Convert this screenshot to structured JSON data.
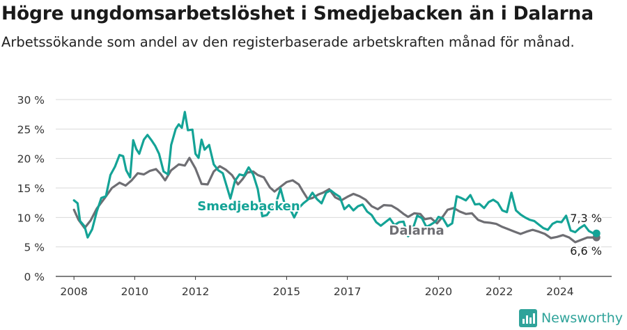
{
  "title": "Högre ungdomsarbetslöshet i Smedjebacken än i Dalarna",
  "subtitle": "Arbetssökande som andel av den registerbaserade arbetskraften månad för månad.",
  "brand": {
    "name": "Newsworthy",
    "icon": "bar-chart-icon",
    "color": "#2fa39a"
  },
  "chart_data": {
    "type": "line",
    "ylim": [
      0,
      30
    ],
    "xlim": [
      2007.4,
      2025.7
    ],
    "yticks": [
      "0 %",
      "5 %",
      "10 %",
      "15 %",
      "20 %",
      "25 %",
      "30 %"
    ],
    "yticks_values": [
      0,
      5,
      10,
      15,
      20,
      25,
      30
    ],
    "xticks": [
      "2008",
      "2010",
      "2012",
      "2015",
      "2017",
      "2020",
      "2022",
      "2024"
    ],
    "xticks_values": [
      2008,
      2010,
      2012,
      2015,
      2017,
      2020,
      2022,
      2024
    ],
    "grid": true,
    "series": [
      {
        "name": "Dalarna",
        "label": "Dalarna",
        "color": "#6e6e73",
        "end_label": "6,6 %",
        "points": [
          [
            2008.0,
            11.3
          ],
          [
            2008.15,
            9.6
          ],
          [
            2008.35,
            8.2
          ],
          [
            2008.55,
            9.5
          ],
          [
            2008.75,
            11.5
          ],
          [
            2009.0,
            13.2
          ],
          [
            2009.25,
            15.0
          ],
          [
            2009.5,
            15.9
          ],
          [
            2009.7,
            15.4
          ],
          [
            2009.9,
            16.3
          ],
          [
            2010.1,
            17.5
          ],
          [
            2010.3,
            17.3
          ],
          [
            2010.5,
            17.9
          ],
          [
            2010.7,
            18.2
          ],
          [
            2010.85,
            17.4
          ],
          [
            2011.0,
            16.3
          ],
          [
            2011.2,
            18.0
          ],
          [
            2011.45,
            19.0
          ],
          [
            2011.65,
            18.8
          ],
          [
            2011.8,
            20.1
          ],
          [
            2012.0,
            18.3
          ],
          [
            2012.2,
            15.7
          ],
          [
            2012.4,
            15.6
          ],
          [
            2012.6,
            17.8
          ],
          [
            2012.8,
            18.7
          ],
          [
            2013.0,
            18.1
          ],
          [
            2013.2,
            17.2
          ],
          [
            2013.4,
            15.6
          ],
          [
            2013.55,
            16.5
          ],
          [
            2013.7,
            17.6
          ],
          [
            2013.9,
            17.8
          ],
          [
            2014.05,
            17.2
          ],
          [
            2014.25,
            16.8
          ],
          [
            2014.45,
            15.1
          ],
          [
            2014.6,
            14.4
          ],
          [
            2014.8,
            15.2
          ],
          [
            2015.0,
            16.0
          ],
          [
            2015.2,
            16.3
          ],
          [
            2015.4,
            15.6
          ],
          [
            2015.55,
            14.3
          ],
          [
            2015.7,
            13.1
          ],
          [
            2015.85,
            13.3
          ],
          [
            2016.05,
            13.9
          ],
          [
            2016.2,
            14.2
          ],
          [
            2016.4,
            14.8
          ],
          [
            2016.6,
            13.4
          ],
          [
            2016.8,
            12.9
          ],
          [
            2017.0,
            13.5
          ],
          [
            2017.2,
            14.0
          ],
          [
            2017.4,
            13.6
          ],
          [
            2017.6,
            13.0
          ],
          [
            2017.8,
            11.9
          ],
          [
            2018.0,
            11.4
          ],
          [
            2018.2,
            12.1
          ],
          [
            2018.45,
            12.0
          ],
          [
            2018.65,
            11.4
          ],
          [
            2018.85,
            10.6
          ],
          [
            2019.0,
            10.1
          ],
          [
            2019.2,
            10.7
          ],
          [
            2019.4,
            10.6
          ],
          [
            2019.55,
            9.7
          ],
          [
            2019.75,
            9.9
          ],
          [
            2019.95,
            9.0
          ],
          [
            2020.15,
            10.2
          ],
          [
            2020.3,
            11.3
          ],
          [
            2020.5,
            11.6
          ],
          [
            2020.7,
            11.0
          ],
          [
            2020.9,
            10.6
          ],
          [
            2021.1,
            10.7
          ],
          [
            2021.3,
            9.6
          ],
          [
            2021.5,
            9.2
          ],
          [
            2021.7,
            9.1
          ],
          [
            2021.9,
            8.9
          ],
          [
            2022.1,
            8.4
          ],
          [
            2022.3,
            8.0
          ],
          [
            2022.5,
            7.6
          ],
          [
            2022.7,
            7.2
          ],
          [
            2022.9,
            7.6
          ],
          [
            2023.1,
            7.9
          ],
          [
            2023.3,
            7.6
          ],
          [
            2023.5,
            7.2
          ],
          [
            2023.7,
            6.5
          ],
          [
            2023.9,
            6.7
          ],
          [
            2024.1,
            7.0
          ],
          [
            2024.3,
            6.6
          ],
          [
            2024.5,
            5.8
          ],
          [
            2024.7,
            6.2
          ],
          [
            2024.9,
            6.6
          ],
          [
            2025.05,
            6.6
          ],
          [
            2025.2,
            6.6
          ]
        ]
      },
      {
        "name": "Smedjebacken",
        "label": "Smedjebacken",
        "color": "#14a396",
        "end_label": "7,3 %",
        "points": [
          [
            2008.0,
            12.9
          ],
          [
            2008.12,
            12.4
          ],
          [
            2008.2,
            9.4
          ],
          [
            2008.35,
            8.5
          ],
          [
            2008.45,
            6.6
          ],
          [
            2008.6,
            8.0
          ],
          [
            2008.75,
            11.0
          ],
          [
            2008.9,
            13.3
          ],
          [
            2009.05,
            13.6
          ],
          [
            2009.2,
            17.2
          ],
          [
            2009.35,
            18.6
          ],
          [
            2009.5,
            20.6
          ],
          [
            2009.62,
            20.4
          ],
          [
            2009.72,
            18.0
          ],
          [
            2009.85,
            16.8
          ],
          [
            2009.95,
            23.1
          ],
          [
            2010.05,
            21.6
          ],
          [
            2010.15,
            20.8
          ],
          [
            2010.3,
            23.2
          ],
          [
            2010.42,
            24.0
          ],
          [
            2010.55,
            23.1
          ],
          [
            2010.68,
            22.1
          ],
          [
            2010.8,
            20.8
          ],
          [
            2010.95,
            17.8
          ],
          [
            2011.1,
            17.3
          ],
          [
            2011.2,
            22.3
          ],
          [
            2011.35,
            25.0
          ],
          [
            2011.45,
            25.8
          ],
          [
            2011.55,
            25.2
          ],
          [
            2011.65,
            27.9
          ],
          [
            2011.75,
            24.8
          ],
          [
            2011.9,
            24.9
          ],
          [
            2012.0,
            20.8
          ],
          [
            2012.1,
            20.1
          ],
          [
            2012.2,
            23.2
          ],
          [
            2012.3,
            21.5
          ],
          [
            2012.45,
            22.3
          ],
          [
            2012.6,
            19.0
          ],
          [
            2012.75,
            18.0
          ],
          [
            2012.9,
            17.5
          ],
          [
            2013.05,
            14.9
          ],
          [
            2013.15,
            13.2
          ],
          [
            2013.3,
            16.2
          ],
          [
            2013.45,
            17.3
          ],
          [
            2013.6,
            17.1
          ],
          [
            2013.75,
            18.5
          ],
          [
            2013.9,
            17.3
          ],
          [
            2014.05,
            14.8
          ],
          [
            2014.2,
            10.2
          ],
          [
            2014.35,
            10.4
          ],
          [
            2014.5,
            11.5
          ],
          [
            2014.65,
            12.4
          ],
          [
            2014.8,
            14.9
          ],
          [
            2014.95,
            12.0
          ],
          [
            2015.1,
            11.6
          ],
          [
            2015.25,
            10.0
          ],
          [
            2015.4,
            11.6
          ],
          [
            2015.55,
            12.4
          ],
          [
            2015.7,
            13.0
          ],
          [
            2015.85,
            14.2
          ],
          [
            2016.0,
            13.1
          ],
          [
            2016.15,
            12.4
          ],
          [
            2016.3,
            14.2
          ],
          [
            2016.45,
            14.6
          ],
          [
            2016.6,
            14.0
          ],
          [
            2016.75,
            13.5
          ],
          [
            2016.9,
            11.4
          ],
          [
            2017.05,
            12.1
          ],
          [
            2017.2,
            11.2
          ],
          [
            2017.35,
            11.9
          ],
          [
            2017.5,
            12.2
          ],
          [
            2017.65,
            11.0
          ],
          [
            2017.8,
            10.4
          ],
          [
            2017.95,
            9.2
          ],
          [
            2018.1,
            8.6
          ],
          [
            2018.25,
            9.2
          ],
          [
            2018.4,
            9.8
          ],
          [
            2018.55,
            8.7
          ],
          [
            2018.7,
            9.2
          ],
          [
            2018.85,
            9.3
          ],
          [
            2019.0,
            6.8
          ],
          [
            2019.15,
            8.0
          ],
          [
            2019.3,
            10.3
          ],
          [
            2019.45,
            9.9
          ],
          [
            2019.6,
            8.4
          ],
          [
            2019.75,
            8.8
          ],
          [
            2019.9,
            9.3
          ],
          [
            2020.0,
            10.1
          ],
          [
            2020.15,
            9.8
          ],
          [
            2020.3,
            8.5
          ],
          [
            2020.45,
            9.0
          ],
          [
            2020.6,
            13.6
          ],
          [
            2020.75,
            13.3
          ],
          [
            2020.9,
            12.9
          ],
          [
            2021.05,
            13.8
          ],
          [
            2021.2,
            12.2
          ],
          [
            2021.35,
            12.3
          ],
          [
            2021.5,
            11.6
          ],
          [
            2021.65,
            12.6
          ],
          [
            2021.8,
            13.0
          ],
          [
            2021.95,
            12.5
          ],
          [
            2022.1,
            11.2
          ],
          [
            2022.25,
            10.9
          ],
          [
            2022.4,
            14.2
          ],
          [
            2022.55,
            11.2
          ],
          [
            2022.7,
            10.5
          ],
          [
            2022.85,
            10.0
          ],
          [
            2023.0,
            9.6
          ],
          [
            2023.15,
            9.4
          ],
          [
            2023.3,
            8.8
          ],
          [
            2023.45,
            8.2
          ],
          [
            2023.6,
            7.9
          ],
          [
            2023.75,
            8.9
          ],
          [
            2023.9,
            9.3
          ],
          [
            2024.05,
            9.2
          ],
          [
            2024.2,
            10.3
          ],
          [
            2024.35,
            7.8
          ],
          [
            2024.5,
            7.5
          ],
          [
            2024.65,
            8.2
          ],
          [
            2024.8,
            8.7
          ],
          [
            2024.95,
            7.7
          ],
          [
            2025.1,
            7.3
          ],
          [
            2025.2,
            7.3
          ]
        ]
      }
    ]
  }
}
